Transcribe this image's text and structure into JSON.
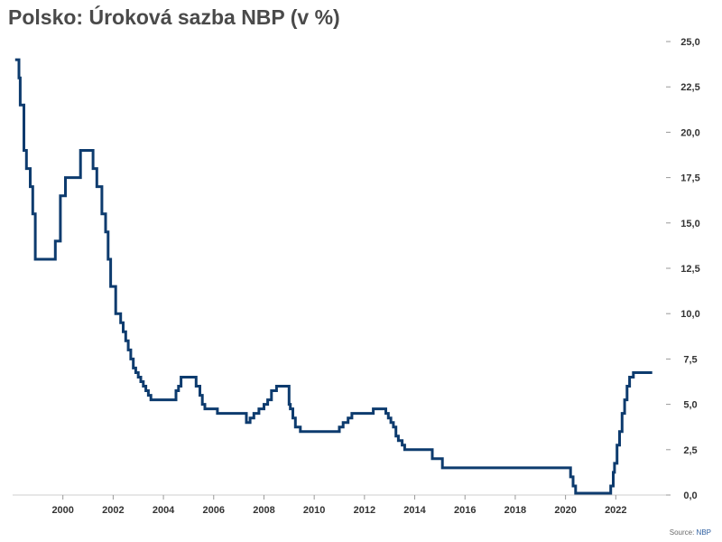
{
  "title": "Polsko: Úroková sazba NBP (v %)",
  "source": {
    "label": "Source:",
    "name": "NBP"
  },
  "chart_data": {
    "type": "line",
    "title": "Polsko: Úroková sazba NBP (v %)",
    "xlabel": "",
    "ylabel": "",
    "xlim": [
      1998.0,
      2024.0
    ],
    "ylim": [
      0,
      25
    ],
    "grid": false,
    "legend": "none",
    "y_axis_side": "right",
    "line_color": "#0d3b6e",
    "x_ticks": [
      "2000",
      "2002",
      "2004",
      "2006",
      "2008",
      "2010",
      "2012",
      "2014",
      "2016",
      "2018",
      "2020",
      "2022"
    ],
    "x_tick_values": [
      2000,
      2002,
      2004,
      2006,
      2008,
      2010,
      2012,
      2014,
      2016,
      2018,
      2020,
      2022
    ],
    "y_ticks": [
      "0,0",
      "2,5",
      "5,0",
      "7,5",
      "10,0",
      "12,5",
      "15,0",
      "17,5",
      "20,0",
      "22,5",
      "25,0"
    ],
    "y_tick_values": [
      0,
      2.5,
      5,
      7.5,
      10,
      12.5,
      15,
      17.5,
      20,
      22.5,
      25
    ],
    "series": [
      {
        "x": [
          1998.1,
          1998.25,
          1998.3,
          1998.45,
          1998.55,
          1998.7,
          1998.8,
          1998.9,
          1999.0,
          1999.7,
          1999.9,
          2000.1,
          2000.4,
          2000.7,
          2001.2,
          2001.35,
          2001.55,
          2001.7,
          2001.8,
          2001.9,
          2002.1,
          2002.3,
          2002.4,
          2002.5,
          2002.6,
          2002.7,
          2002.8,
          2002.9,
          2003.0,
          2003.1,
          2003.2,
          2003.3,
          2003.4,
          2003.5,
          2004.5,
          2004.6,
          2004.7,
          2005.3,
          2005.45,
          2005.55,
          2005.65,
          2006.15,
          2007.3,
          2007.45,
          2007.6,
          2007.8,
          2008.0,
          2008.15,
          2008.3,
          2008.5,
          2008.7,
          2009.0,
          2009.05,
          2009.15,
          2009.25,
          2009.45,
          2011.0,
          2011.15,
          2011.35,
          2011.5,
          2012.35,
          2012.85,
          2012.95,
          2013.05,
          2013.15,
          2013.25,
          2013.35,
          2013.5,
          2013.6,
          2014.7,
          2015.1,
          2020.2,
          2020.3,
          2020.4,
          2021.8,
          2021.9,
          2021.95,
          2022.05,
          2022.15,
          2022.25,
          2022.35,
          2022.45,
          2022.55,
          2022.7,
          2023.45
        ],
        "y": [
          24.0,
          23.0,
          21.5,
          19.0,
          18.0,
          17.0,
          15.5,
          13.0,
          13.0,
          14.0,
          16.5,
          17.5,
          17.5,
          19.0,
          18.0,
          17.0,
          15.5,
          14.5,
          13.0,
          11.5,
          10.0,
          9.5,
          9.0,
          8.5,
          8.0,
          7.5,
          7.0,
          6.75,
          6.5,
          6.25,
          6.0,
          5.75,
          5.5,
          5.25,
          5.75,
          6.0,
          6.5,
          6.0,
          5.5,
          5.0,
          4.75,
          4.5,
          4.0,
          4.25,
          4.5,
          4.75,
          5.0,
          5.25,
          5.75,
          6.0,
          6.0,
          5.0,
          4.75,
          4.25,
          3.75,
          3.5,
          3.75,
          4.0,
          4.25,
          4.5,
          4.75,
          4.5,
          4.25,
          4.0,
          3.75,
          3.25,
          3.0,
          2.75,
          2.5,
          2.0,
          1.5,
          1.0,
          0.5,
          0.1,
          0.5,
          1.25,
          1.75,
          2.75,
          3.5,
          4.5,
          5.25,
          6.0,
          6.5,
          6.75,
          6.75
        ]
      }
    ]
  }
}
